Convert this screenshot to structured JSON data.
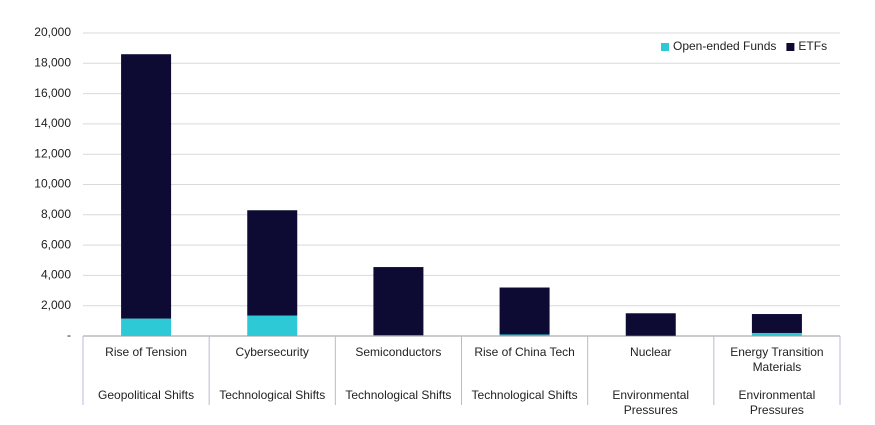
{
  "chart_data": {
    "type": "stacked_bar",
    "categories": [
      "Rise of Tension",
      "Cybersecurity",
      "Semiconductors",
      "Rise of China Tech",
      "Nuclear",
      "Energy Transition Materials"
    ],
    "category_groups": [
      "Geopolitical Shifts",
      "Technological Shifts",
      "Technological Shifts",
      "Technological Shifts",
      "Environmental Pressures",
      "Environmental Pressures"
    ],
    "series": [
      {
        "name": "Open-ended Funds",
        "color": "#2ec9d6",
        "values": [
          1150,
          1350,
          50,
          100,
          20,
          200
        ]
      },
      {
        "name": "ETFs",
        "color": "#0d0a33",
        "values": [
          17450,
          6950,
          4500,
          3100,
          1480,
          1250
        ]
      }
    ],
    "ylim": [
      0,
      20000
    ],
    "yticks": [
      {
        "value": 0,
        "label": "-"
      },
      {
        "value": 2000,
        "label": "2,000"
      },
      {
        "value": 4000,
        "label": "4,000"
      },
      {
        "value": 6000,
        "label": "6,000"
      },
      {
        "value": 8000,
        "label": "8,000"
      },
      {
        "value": 10000,
        "label": "10,000"
      },
      {
        "value": 12000,
        "label": "12,000"
      },
      {
        "value": 14000,
        "label": "14,000"
      },
      {
        "value": 16000,
        "label": "16,000"
      },
      {
        "value": 18000,
        "label": "18,000"
      },
      {
        "value": 20000,
        "label": "20,000"
      }
    ],
    "grid": true,
    "legend": "top-right"
  }
}
